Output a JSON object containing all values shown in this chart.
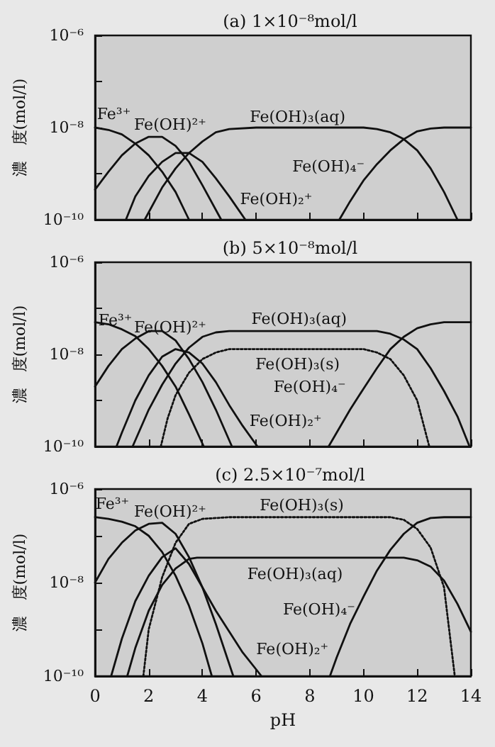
{
  "chart_data": [
    {
      "type": "line",
      "title": "(a) 1×10⁻⁸mol/l",
      "ylabel": "濃　度(mol/l)",
      "log": "y",
      "tick_labels": "y",
      "xlim": [
        0,
        14
      ],
      "xticks": [
        0,
        2,
        4,
        6,
        8,
        10,
        12,
        14
      ],
      "ylim": [
        1e-10,
        1e-06
      ],
      "yticks": [
        {
          "value": 1e-10,
          "label": "10⁻¹⁰"
        },
        {
          "value": 1e-09,
          "label": null
        },
        {
          "value": 1e-08,
          "label": "10⁻⁸"
        },
        {
          "value": 1e-07,
          "label": null
        },
        {
          "value": 1e-06,
          "label": "10⁻⁶"
        }
      ],
      "series": [
        {
          "color": "#111111",
          "x": [
            0,
            0.5,
            1,
            1.5,
            2,
            2.5,
            3,
            3.5
          ],
          "values": [
            1e-08,
            8.9e-09,
            7.1e-09,
            4.5e-09,
            2.5e-09,
            1.1e-09,
            4e-10,
            1e-10
          ]
        },
        {
          "color": "#111111",
          "x": [
            0,
            0.5,
            1,
            1.5,
            2,
            2.5,
            3,
            3.5,
            4,
            4.7
          ],
          "values": [
            4.5e-10,
            1.1e-09,
            2.5e-09,
            4.5e-09,
            6.3e-09,
            6.3e-09,
            4e-09,
            1.8e-09,
            5.6e-10,
            1e-10
          ]
        },
        {
          "color": "#111111",
          "x": [
            1.15,
            1.5,
            2,
            2.5,
            3,
            3.5,
            4,
            4.5,
            5,
            5.6
          ],
          "values": [
            1e-10,
            3.2e-10,
            8.9e-10,
            1.8e-09,
            2.8e-09,
            2.8e-09,
            1.8e-09,
            7.9e-10,
            3.2e-10,
            1e-10
          ]
        },
        {
          "color": "#111111",
          "x": [
            1.85,
            2.5,
            3,
            3.5,
            4,
            4.5,
            5,
            6,
            10,
            10.5,
            11,
            11.5,
            12,
            12.5,
            13,
            13.5
          ],
          "values": [
            1e-10,
            5e-10,
            1.3e-09,
            2.8e-09,
            5e-09,
            7.9e-09,
            9.3e-09,
            1e-08,
            1e-08,
            9.3e-09,
            7.9e-09,
            5.6e-09,
            3.2e-09,
            1.3e-09,
            4e-10,
            1e-10
          ]
        },
        {
          "color": "#111111",
          "x": [
            9.1,
            9.5,
            10,
            10.5,
            11,
            11.5,
            12,
            12.5,
            13,
            14
          ],
          "values": [
            1e-10,
            2.5e-10,
            7.1e-10,
            1.6e-09,
            3.2e-09,
            5.6e-09,
            8.3e-09,
            9.5e-09,
            1e-08,
            1e-08
          ]
        }
      ],
      "annotations": [
        "Fe³⁺",
        "Fe(OH)²⁺",
        "Fe(OH)₃(aq)",
        "Fe(OH)₄⁻",
        "Fe(OH)₂⁺"
      ]
    },
    {
      "type": "line",
      "title": "(b) 5×10⁻⁸mol/l",
      "ylabel": "濃　度(mol/l)",
      "log": "y",
      "tick_labels": "y",
      "xlim": [
        0,
        14
      ],
      "xticks": [
        0,
        2,
        4,
        6,
        8,
        10,
        12,
        14
      ],
      "ylim": [
        1e-10,
        1e-06
      ],
      "yticks": [
        {
          "value": 1e-10,
          "label": "10⁻¹⁰"
        },
        {
          "value": 1e-09,
          "label": null
        },
        {
          "value": 1e-08,
          "label": "10⁻⁸"
        },
        {
          "value": 1e-07,
          "label": null
        },
        {
          "value": 1e-06,
          "label": "10⁻⁶"
        }
      ],
      "series": [
        {
          "color": "#111111",
          "x": [
            0,
            0.5,
            1,
            1.5,
            2,
            2.5,
            3,
            3.5,
            4.05
          ],
          "values": [
            5e-08,
            4.5e-08,
            3.5e-08,
            2.5e-08,
            1.3e-08,
            5.6e-09,
            2e-09,
            5e-10,
            1e-10
          ]
        },
        {
          "color": "#111111",
          "x": [
            0,
            0.5,
            1,
            1.5,
            2,
            2.5,
            3,
            3.5,
            4,
            4.5,
            5.1
          ],
          "values": [
            2e-09,
            5.6e-09,
            1.3e-08,
            2.2e-08,
            3.2e-08,
            3.2e-08,
            2e-08,
            7.9e-09,
            2.5e-09,
            6.3e-10,
            1e-10
          ]
        },
        {
          "color": "#111111",
          "x": [
            0.8,
            1,
            1.5,
            2,
            2.5,
            3,
            3.5,
            4,
            4.5,
            5,
            5.5,
            6.05
          ],
          "values": [
            1e-10,
            2e-10,
            1e-09,
            3.5e-09,
            8.9e-09,
            1.3e-08,
            1.1e-08,
            6.3e-09,
            2.5e-09,
            7.9e-10,
            2.8e-10,
            1e-10
          ]
        },
        {
          "color": "#111111",
          "x": [
            1.4,
            2,
            2.5,
            3,
            3.5,
            4,
            4.5,
            5,
            10.5,
            11,
            11.5,
            12,
            12.5,
            13,
            13.5,
            13.95
          ],
          "values": [
            1e-10,
            6.3e-10,
            2.2e-09,
            6.3e-09,
            1.4e-08,
            2.4e-08,
            3e-08,
            3.2e-08,
            3.2e-08,
            2.8e-08,
            2.1e-08,
            1.3e-08,
            5e-09,
            1.6e-09,
            4.5e-10,
            1e-10
          ]
        },
        {
          "color": "#111111",
          "line_style": "dotted",
          "x": [
            2.45,
            2.7,
            3,
            3.5,
            4,
            4.5,
            5,
            10,
            10.5,
            11,
            11.5,
            12,
            12.45
          ],
          "values": [
            1e-10,
            4e-10,
            1.3e-09,
            4e-09,
            7.9e-09,
            1.1e-08,
            1.3e-08,
            1.3e-08,
            1.1e-08,
            7.9e-09,
            3.5e-09,
            1e-09,
            1e-10
          ]
        },
        {
          "color": "#111111",
          "x": [
            8.7,
            9,
            9.5,
            10,
            10.5,
            11,
            11.5,
            12,
            12.5,
            13,
            14
          ],
          "values": [
            1e-10,
            2e-10,
            6.3e-10,
            1.8e-09,
            5e-09,
            1.3e-08,
            2.4e-08,
            3.7e-08,
            4.5e-08,
            5e-08,
            5e-08
          ]
        }
      ],
      "annotations": [
        "Fe³⁺",
        "Fe(OH)²⁺",
        "Fe(OH)₃(aq)",
        "Fe(OH)₃(s)",
        "Fe(OH)₄⁻",
        "Fe(OH)₂⁺"
      ]
    },
    {
      "type": "line",
      "title": "(c) 2.5×10⁻⁷mol/l",
      "xlabel": "pH",
      "ylabel": "濃　度(mol/l)",
      "log": "y",
      "xlim": [
        0,
        14
      ],
      "xticks": [
        0,
        2,
        4,
        6,
        8,
        10,
        12,
        14
      ],
      "ylim": [
        1e-10,
        1e-06
      ],
      "yticks": [
        {
          "value": 1e-10,
          "label": "10⁻¹⁰"
        },
        {
          "value": 1e-09,
          "label": null
        },
        {
          "value": 1e-08,
          "label": "10⁻⁸"
        },
        {
          "value": 1e-07,
          "label": null
        },
        {
          "value": 1e-06,
          "label": "10⁻⁶"
        }
      ],
      "series": [
        {
          "color": "#111111",
          "x": [
            0,
            0.5,
            1,
            1.5,
            2,
            2.5,
            3,
            3.5,
            4,
            4.35
          ],
          "values": [
            2.5e-07,
            2.3e-07,
            2e-07,
            1.6e-07,
            1e-07,
            4.5e-08,
            1.4e-08,
            3.2e-09,
            5e-10,
            1e-10
          ]
        },
        {
          "color": "#111111",
          "x": [
            0,
            0.5,
            1,
            1.5,
            2,
            2.5,
            3,
            3.5,
            4,
            4.5,
            5.15
          ],
          "values": [
            1e-08,
            3.2e-08,
            7.1e-08,
            1.3e-07,
            1.8e-07,
            1.9e-07,
            1.1e-07,
            3.5e-08,
            7.9e-09,
            1.3e-09,
            1e-10
          ]
        },
        {
          "color": "#111111",
          "x": [
            0.6,
            1,
            1.5,
            2,
            2.5,
            3,
            3.5,
            4,
            4.5,
            5,
            5.5,
            6.2
          ],
          "values": [
            1e-10,
            6.3e-10,
            4e-09,
            1.4e-08,
            3.5e-08,
            5.4e-08,
            2.5e-08,
            7.9e-09,
            2.5e-09,
            8.9e-10,
            3.2e-10,
            1e-10
          ]
        },
        {
          "color": "#111111",
          "x": [
            1.2,
            1.5,
            2,
            2.5,
            3,
            3.5,
            3.8,
            11.5,
            12,
            12.5,
            13,
            13.5,
            14
          ],
          "values": [
            1e-10,
            4e-10,
            2.5e-09,
            8.9e-09,
            2e-08,
            3.2e-08,
            3.4e-08,
            3.4e-08,
            3e-08,
            2.2e-08,
            1.1e-08,
            3.5e-09,
            8.9e-10
          ]
        },
        {
          "color": "#111111",
          "line_style": "dotted",
          "x": [
            1.8,
            2,
            2.5,
            3,
            3.5,
            4,
            5,
            11,
            11.5,
            12,
            12.5,
            13,
            13.4
          ],
          "values": [
            1e-10,
            1e-09,
            1.3e-08,
            7.1e-08,
            1.8e-07,
            2.3e-07,
            2.5e-07,
            2.5e-07,
            2.2e-07,
            1.4e-07,
            5.6e-08,
            7.9e-09,
            1e-10
          ]
        },
        {
          "color": "#111111",
          "x": [
            8.75,
            9,
            9.5,
            10,
            10.5,
            11,
            11.5,
            12,
            12.5,
            13,
            14
          ],
          "values": [
            1e-10,
            2.5e-10,
            1.3e-09,
            5e-09,
            1.8e-08,
            5e-08,
            1.1e-07,
            1.9e-07,
            2.4e-07,
            2.5e-07,
            2.5e-07
          ]
        }
      ],
      "annotations": [
        "Fe³⁺",
        "Fe(OH)²⁺",
        "Fe(OH)₃(s)",
        "Fe(OH)₃(aq)",
        "Fe(OH)₄⁻",
        "Fe(OH)₂⁺"
      ]
    }
  ]
}
